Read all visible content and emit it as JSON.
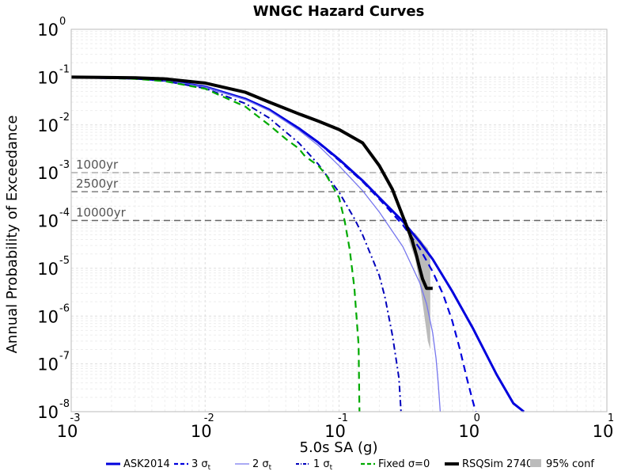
{
  "chart_data": {
    "type": "line",
    "title": "WNGC Hazard Curves",
    "xlabel": "5.0s SA (g)",
    "ylabel": "Annual Probability of Exceedance",
    "xscale": "log",
    "yscale": "log",
    "xlim": [
      0.001,
      10
    ],
    "ylim": [
      1e-08,
      1
    ],
    "grid": true,
    "legend_position": "bottom",
    "x_ticks": [
      {
        "base": "10",
        "exp": "-3"
      },
      {
        "base": "10",
        "exp": "-2"
      },
      {
        "base": "10",
        "exp": "-1"
      },
      {
        "base": "10",
        "exp": "0"
      },
      {
        "base": "10",
        "exp": "1"
      }
    ],
    "y_ticks": [
      {
        "base": "10",
        "exp": "0"
      },
      {
        "base": "10",
        "exp": "-1"
      },
      {
        "base": "10",
        "exp": "-2"
      },
      {
        "base": "10",
        "exp": "-3"
      },
      {
        "base": "10",
        "exp": "-4"
      },
      {
        "base": "10",
        "exp": "-5"
      },
      {
        "base": "10",
        "exp": "-6"
      },
      {
        "base": "10",
        "exp": "-7"
      },
      {
        "base": "10",
        "exp": "-8"
      }
    ],
    "reference_lines": [
      {
        "label": "1000yr",
        "y": 0.001
      },
      {
        "label": "2500yr",
        "y": 0.0004
      },
      {
        "label": "10000yr",
        "y": 0.0001
      }
    ],
    "series": [
      {
        "name": "ASK2014",
        "color": "#0000dd",
        "style": "solid",
        "x": [
          0.001,
          0.003,
          0.005,
          0.01,
          0.02,
          0.03,
          0.05,
          0.07,
          0.1,
          0.15,
          0.2,
          0.3,
          0.4,
          0.5,
          0.7,
          1.0,
          1.5,
          2.0,
          2.4
        ],
        "y": [
          0.1,
          0.094,
          0.085,
          0.063,
          0.035,
          0.021,
          0.0085,
          0.0043,
          0.0019,
          0.00068,
          0.0003,
          9.5e-05,
          3.6e-05,
          1.55e-05,
          3.3e-06,
          5.5e-07,
          6e-08,
          1.5e-08,
          1e-08
        ]
      },
      {
        "name": "3 σt",
        "sub": "t",
        "color": "#0000dd",
        "style": "dashed",
        "x": [
          0.001,
          0.003,
          0.005,
          0.01,
          0.02,
          0.03,
          0.05,
          0.07,
          0.1,
          0.15,
          0.2,
          0.3,
          0.4,
          0.5,
          0.6,
          0.7,
          0.8,
          0.9,
          1.0,
          1.05
        ],
        "y": [
          0.1,
          0.094,
          0.085,
          0.063,
          0.035,
          0.021,
          0.0084,
          0.0042,
          0.0018,
          0.00065,
          0.00028,
          8e-05,
          2.6e-05,
          8.5e-06,
          2.8e-06,
          8e-07,
          2e-07,
          5e-08,
          1.6e-08,
          1e-08
        ]
      },
      {
        "name": "2 σt",
        "sub": "t",
        "color": "#7777ee",
        "style": "solid-thin",
        "x": [
          0.001,
          0.003,
          0.005,
          0.01,
          0.02,
          0.03,
          0.05,
          0.07,
          0.1,
          0.15,
          0.2,
          0.3,
          0.4,
          0.45,
          0.5,
          0.53,
          0.55,
          0.57
        ],
        "y": [
          0.1,
          0.094,
          0.085,
          0.062,
          0.034,
          0.02,
          0.0078,
          0.0037,
          0.0014,
          0.00042,
          0.00015,
          2.8e-05,
          5e-06,
          1.8e-06,
          4.5e-07,
          1.3e-07,
          4e-08,
          1e-08
        ]
      },
      {
        "name": "1 σt",
        "sub": "t",
        "color": "#0000bb",
        "style": "dashdot",
        "x": [
          0.001,
          0.003,
          0.005,
          0.01,
          0.02,
          0.03,
          0.05,
          0.07,
          0.1,
          0.13,
          0.15,
          0.2,
          0.22,
          0.25,
          0.27,
          0.28,
          0.29
        ],
        "y": [
          0.1,
          0.093,
          0.083,
          0.058,
          0.028,
          0.014,
          0.0042,
          0.0015,
          0.00039,
          0.00011,
          5e-05,
          7e-06,
          2.5e-06,
          4e-07,
          1e-07,
          5e-08,
          1e-08
        ]
      },
      {
        "name": "Fixed σ=0",
        "color": "#00aa00",
        "style": "dashed",
        "x": [
          0.001,
          0.003,
          0.005,
          0.01,
          0.02,
          0.03,
          0.04,
          0.05,
          0.055,
          0.06,
          0.07,
          0.08,
          0.1,
          0.11,
          0.12,
          0.13,
          0.14,
          0.142
        ],
        "y": [
          0.1,
          0.092,
          0.082,
          0.057,
          0.024,
          0.01,
          0.0051,
          0.0032,
          0.0023,
          0.0019,
          0.0014,
          0.0009,
          0.0003,
          0.0001,
          2.5e-05,
          4e-06,
          2.5e-07,
          1e-08
        ]
      },
      {
        "name": "RSQSim 2740",
        "color": "#000000",
        "style": "thick",
        "x": [
          0.001,
          0.003,
          0.005,
          0.01,
          0.02,
          0.03,
          0.05,
          0.07,
          0.1,
          0.15,
          0.2,
          0.25,
          0.3,
          0.35,
          0.38,
          0.4,
          0.42,
          0.45,
          0.5
        ],
        "y": [
          0.1,
          0.097,
          0.092,
          0.075,
          0.048,
          0.03,
          0.017,
          0.012,
          0.008,
          0.0042,
          0.0014,
          0.00045,
          0.00012,
          4e-05,
          1.8e-05,
          1e-05,
          6e-06,
          3.8e-06,
          3.8e-06
        ]
      }
    ],
    "confidence_band": {
      "name": "95% conf",
      "color": "#bbbbbb",
      "x": [
        0.33,
        0.37,
        0.4,
        0.43,
        0.46,
        0.48,
        0.48,
        0.46,
        0.43,
        0.4,
        0.37,
        0.33
      ],
      "y": [
        4e-05,
        1.6e-05,
        5e-06,
        1.2e-06,
        3e-07,
        2e-07,
        1.5e-05,
        2.6e-05,
        3.2e-05,
        4.2e-05,
        5.5e-05,
        6e-05
      ]
    }
  }
}
